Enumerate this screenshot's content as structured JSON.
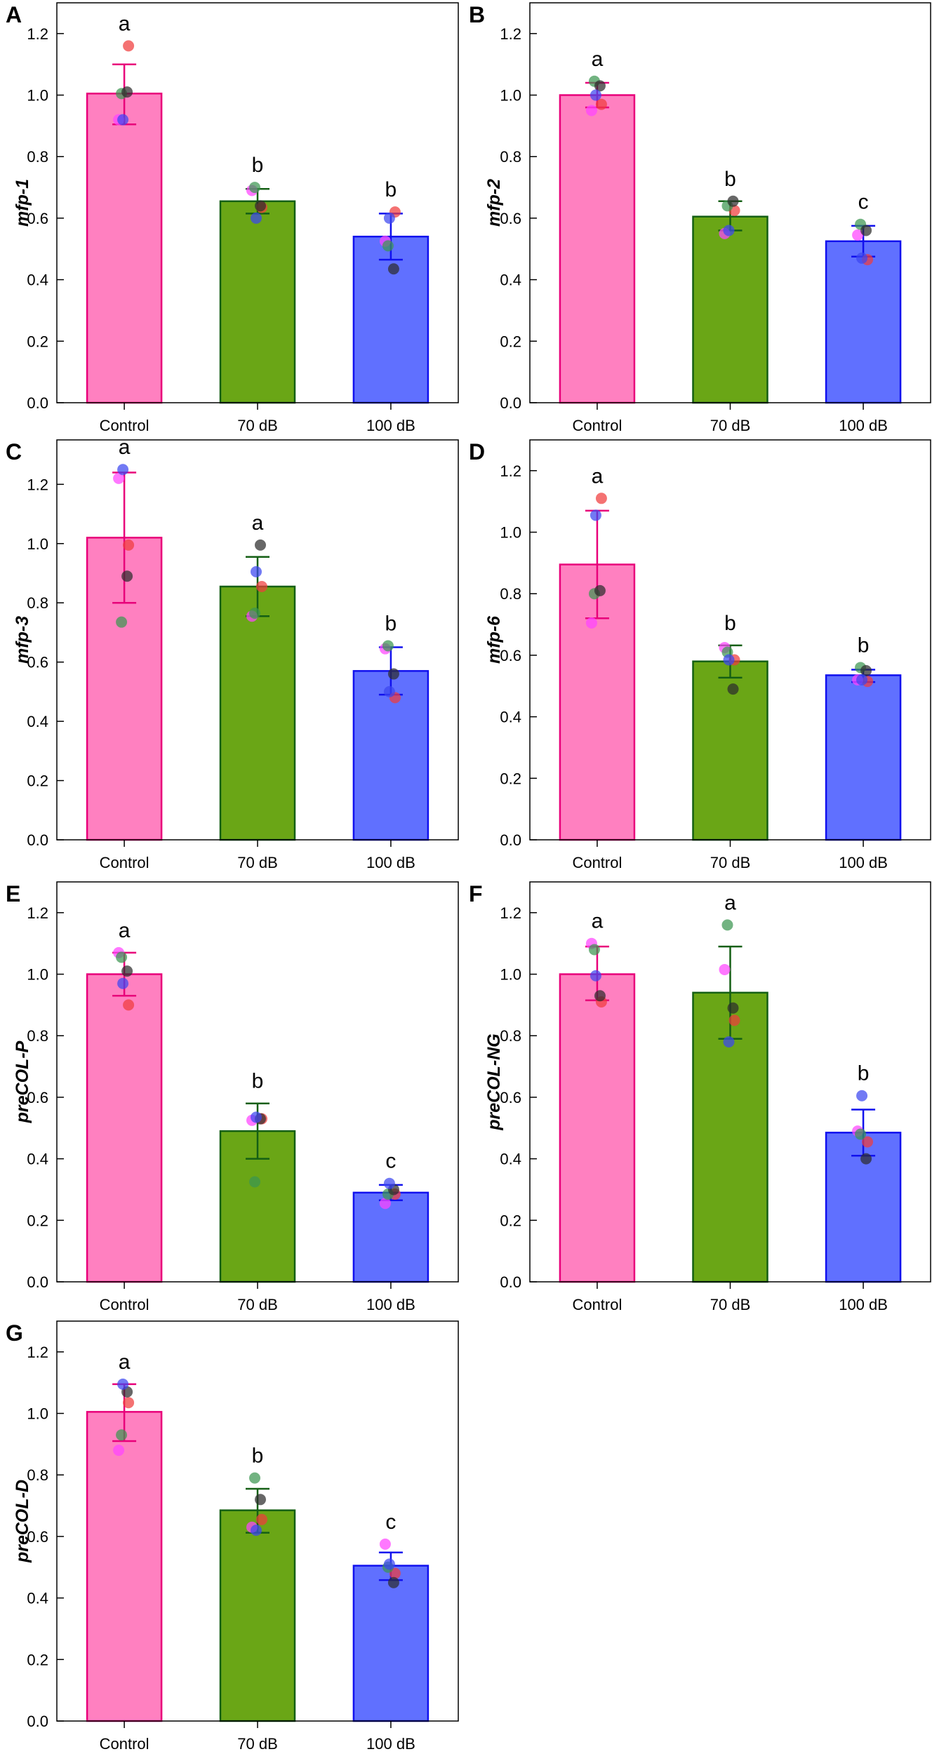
{
  "chart_data": [
    {
      "type": "bar",
      "panel": "A",
      "ylabel": "mfp-1",
      "ylim": [
        0,
        1.3
      ],
      "categories": [
        "Control",
        "70 dB",
        "100 dB"
      ],
      "yticks": [
        "0.0",
        "0.2",
        "0.4",
        "0.6",
        "0.8",
        "1.0",
        "1.2"
      ],
      "means": [
        1.005,
        0.655,
        0.54
      ],
      "err_upper": [
        1.1,
        0.695,
        0.615
      ],
      "err_lower": [
        0.905,
        0.615,
        0.465
      ],
      "letters": [
        "a",
        "b",
        "b"
      ],
      "points": [
        {
          "red": 1.16,
          "magenta": 0.92,
          "green": 1.005,
          "dark": 1.01,
          "blue": 0.92
        },
        {
          "red": 0.635,
          "magenta": 0.69,
          "green": 0.7,
          "dark": 0.64,
          "blue": 0.6
        },
        {
          "red": 0.62,
          "magenta": 0.525,
          "green": 0.51,
          "dark": 0.435,
          "blue": 0.6
        }
      ]
    },
    {
      "type": "bar",
      "panel": "B",
      "ylabel": "mfp-2",
      "ylim": [
        0,
        1.3
      ],
      "categories": [
        "Control",
        "70 dB",
        "100 dB"
      ],
      "yticks": [
        "0.0",
        "0.2",
        "0.4",
        "0.6",
        "0.8",
        "1.0",
        "1.2"
      ],
      "means": [
        1.0,
        0.605,
        0.525
      ],
      "err_upper": [
        1.04,
        0.655,
        0.575
      ],
      "err_lower": [
        0.96,
        0.56,
        0.475
      ],
      "letters": [
        "a",
        "b",
        "c"
      ],
      "points": [
        {
          "red": 0.97,
          "magenta": 0.95,
          "green": 1.045,
          "dark": 1.03,
          "blue": 1.0
        },
        {
          "red": 0.625,
          "magenta": 0.55,
          "green": 0.64,
          "dark": 0.655,
          "blue": 0.56
        },
        {
          "red": 0.465,
          "magenta": 0.545,
          "green": 0.58,
          "dark": 0.56,
          "blue": 0.47
        }
      ]
    },
    {
      "type": "bar",
      "panel": "C",
      "ylabel": "mfp-3",
      "ylim": [
        0,
        1.35
      ],
      "categories": [
        "Control",
        "70 dB",
        "100 dB"
      ],
      "yticks": [
        "0.0",
        "0.2",
        "0.4",
        "0.6",
        "0.8",
        "1.0",
        "1.2"
      ],
      "means": [
        1.02,
        0.855,
        0.57
      ],
      "err_upper": [
        1.24,
        0.955,
        0.65
      ],
      "err_lower": [
        0.8,
        0.755,
        0.49
      ],
      "letters": [
        "a",
        "a",
        "b"
      ],
      "points": [
        {
          "red": 0.995,
          "magenta": 1.22,
          "green": 0.735,
          "dark": 0.89,
          "blue": 1.25
        },
        {
          "red": 0.855,
          "magenta": 0.755,
          "green": 0.765,
          "dark": 0.995,
          "blue": 0.905
        },
        {
          "red": 0.48,
          "magenta": 0.645,
          "green": 0.655,
          "dark": 0.56,
          "blue": 0.5
        }
      ]
    },
    {
      "type": "bar",
      "panel": "D",
      "ylabel": "mfp-6",
      "ylim": [
        0,
        1.3
      ],
      "categories": [
        "Control",
        "70 dB",
        "100 dB"
      ],
      "yticks": [
        "0.0",
        "0.2",
        "0.4",
        "0.6",
        "0.8",
        "1.0",
        "1.2"
      ],
      "means": [
        0.895,
        0.58,
        0.535
      ],
      "err_upper": [
        1.07,
        0.632,
        0.553
      ],
      "err_lower": [
        0.72,
        0.527,
        0.513
      ],
      "letters": [
        "a",
        "b",
        "b"
      ],
      "points": [
        {
          "red": 1.11,
          "magenta": 0.705,
          "green": 0.8,
          "dark": 0.81,
          "blue": 1.055
        },
        {
          "red": 0.585,
          "magenta": 0.625,
          "green": 0.61,
          "dark": 0.49,
          "blue": 0.585
        },
        {
          "red": 0.515,
          "magenta": 0.52,
          "green": 0.56,
          "dark": 0.55,
          "blue": 0.52
        }
      ]
    },
    {
      "type": "bar",
      "panel": "E",
      "ylabel": "preCOL-P",
      "ylim": [
        0,
        1.3
      ],
      "categories": [
        "Control",
        "70 dB",
        "100 dB"
      ],
      "yticks": [
        "0.0",
        "0.2",
        "0.4",
        "0.6",
        "0.8",
        "1.0",
        "1.2"
      ],
      "means": [
        1.0,
        0.49,
        0.29
      ],
      "err_upper": [
        1.07,
        0.58,
        0.315
      ],
      "err_lower": [
        0.93,
        0.4,
        0.265
      ],
      "letters": [
        "a",
        "b",
        "c"
      ],
      "points": [
        {
          "red": 0.9,
          "magenta": 1.07,
          "green": 1.055,
          "dark": 1.01,
          "blue": 0.97
        },
        {
          "red": 0.53,
          "magenta": 0.525,
          "green": 0.325,
          "dark": 0.53,
          "blue": 0.535
        },
        {
          "red": 0.285,
          "magenta": 0.255,
          "green": 0.285,
          "dark": 0.3,
          "blue": 0.32
        }
      ]
    },
    {
      "type": "bar",
      "panel": "F",
      "ylabel": "preCOL-NG",
      "ylim": [
        0,
        1.3
      ],
      "categories": [
        "Control",
        "70 dB",
        "100 dB"
      ],
      "yticks": [
        "0.0",
        "0.2",
        "0.4",
        "0.6",
        "0.8",
        "1.0",
        "1.2"
      ],
      "means": [
        1.0,
        0.94,
        0.485
      ],
      "err_upper": [
        1.09,
        1.09,
        0.56
      ],
      "err_lower": [
        0.915,
        0.79,
        0.41
      ],
      "letters": [
        "a",
        "a",
        "b"
      ],
      "points": [
        {
          "red": 0.91,
          "magenta": 1.1,
          "green": 1.08,
          "dark": 0.93,
          "blue": 0.995
        },
        {
          "red": 0.85,
          "magenta": 1.015,
          "green": 1.16,
          "dark": 0.89,
          "blue": 0.78
        },
        {
          "red": 0.455,
          "magenta": 0.49,
          "green": 0.48,
          "dark": 0.4,
          "blue": 0.605
        }
      ]
    },
    {
      "type": "bar",
      "panel": "G",
      "ylabel": "preCOL-D",
      "ylim": [
        0,
        1.3
      ],
      "categories": [
        "Control",
        "70 dB",
        "100 dB"
      ],
      "yticks": [
        "0.0",
        "0.2",
        "0.4",
        "0.6",
        "0.8",
        "1.0",
        "1.2"
      ],
      "means": [
        1.005,
        0.685,
        0.505
      ],
      "err_upper": [
        1.095,
        0.755,
        0.548
      ],
      "err_lower": [
        0.91,
        0.612,
        0.458
      ],
      "letters": [
        "a",
        "b",
        "c"
      ],
      "points": [
        {
          "red": 1.035,
          "magenta": 0.88,
          "green": 0.93,
          "dark": 1.07,
          "blue": 1.095
        },
        {
          "red": 0.655,
          "magenta": 0.63,
          "green": 0.79,
          "dark": 0.72,
          "blue": 0.62
        },
        {
          "red": 0.48,
          "magenta": 0.575,
          "green": 0.5,
          "dark": 0.45,
          "blue": 0.51
        }
      ]
    }
  ],
  "colors": {
    "bar_fill": [
      "#ff80c0",
      "#6aa616",
      "#6070ff"
    ],
    "bar_stroke": [
      "#e8007a",
      "#145f14",
      "#1010ee"
    ],
    "dots": {
      "red": "#f03c3c",
      "magenta": "#ff44ff",
      "green": "#3c9650",
      "dark": "#2c2c2c",
      "blue": "#3c46f0"
    }
  }
}
